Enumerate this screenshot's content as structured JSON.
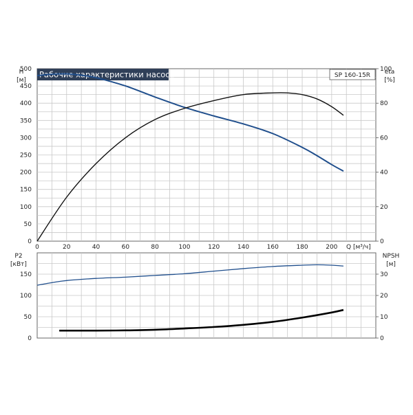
{
  "chart_data": [
    {
      "type": "line",
      "title": "Рабочие характеристики насоса",
      "model": "SP 160-15R",
      "y_left_label_top": "H",
      "y_left_unit": "[м]",
      "y_right_label_top": "eta",
      "y_right_unit": "[%]",
      "x_label": "Q [м³/ч]",
      "xlim": [
        0,
        230
      ],
      "xticks": [
        0,
        20,
        40,
        60,
        80,
        100,
        120,
        140,
        160,
        180,
        200
      ],
      "ylim_left": [
        0,
        500
      ],
      "yticks_left": [
        0,
        50,
        100,
        150,
        200,
        250,
        300,
        350,
        400,
        450,
        500
      ],
      "ylim_right": [
        0,
        100
      ],
      "yticks_right": [
        0,
        20,
        40,
        60,
        80,
        100
      ],
      "grid": true,
      "series": [
        {
          "axis": "left",
          "color": "#1f4e8c",
          "x": [
            0,
            10,
            20,
            30,
            40,
            60,
            80,
            100,
            120,
            140,
            160,
            180,
            190,
            200,
            208
          ],
          "values": [
            480,
            484,
            485,
            481,
            474,
            450,
            418,
            388,
            363,
            340,
            312,
            272,
            248,
            222,
            203
          ]
        },
        {
          "axis": "right",
          "color": "#111111",
          "x": [
            0,
            20,
            40,
            60,
            80,
            100,
            120,
            140,
            160,
            170,
            180,
            190,
            200,
            208
          ],
          "values": [
            0,
            25.5,
            45,
            60,
            70.5,
            77,
            81.5,
            85,
            86,
            86,
            85,
            82.5,
            78,
            73
          ]
        }
      ]
    },
    {
      "type": "line",
      "y_left_label_top": "P2",
      "y_left_unit": "[кВт]",
      "y_right_label_top": "NPSH",
      "y_right_unit": "[м]",
      "xlim": [
        0,
        230
      ],
      "ylim_left": [
        0,
        200
      ],
      "yticks_left": [
        0,
        50,
        100,
        150
      ],
      "ylim_right": [
        0,
        40
      ],
      "yticks_right": [
        0,
        10,
        20,
        30
      ],
      "grid": true,
      "series": [
        {
          "axis": "left",
          "color": "#1f4e8c",
          "x": [
            0,
            10,
            20,
            40,
            60,
            80,
            100,
            120,
            140,
            160,
            180,
            190,
            200,
            208
          ],
          "values": [
            124,
            130,
            135,
            140,
            143,
            147,
            151,
            157,
            163,
            168,
            171,
            172,
            171,
            169
          ]
        },
        {
          "axis": "right",
          "color": "#000000",
          "x": [
            15,
            40,
            60,
            80,
            100,
            120,
            140,
            160,
            180,
            200,
            208
          ],
          "values": [
            3.5,
            3.5,
            3.6,
            3.9,
            4.5,
            5.2,
            6.2,
            7.6,
            9.6,
            12,
            13.2
          ]
        }
      ]
    }
  ]
}
